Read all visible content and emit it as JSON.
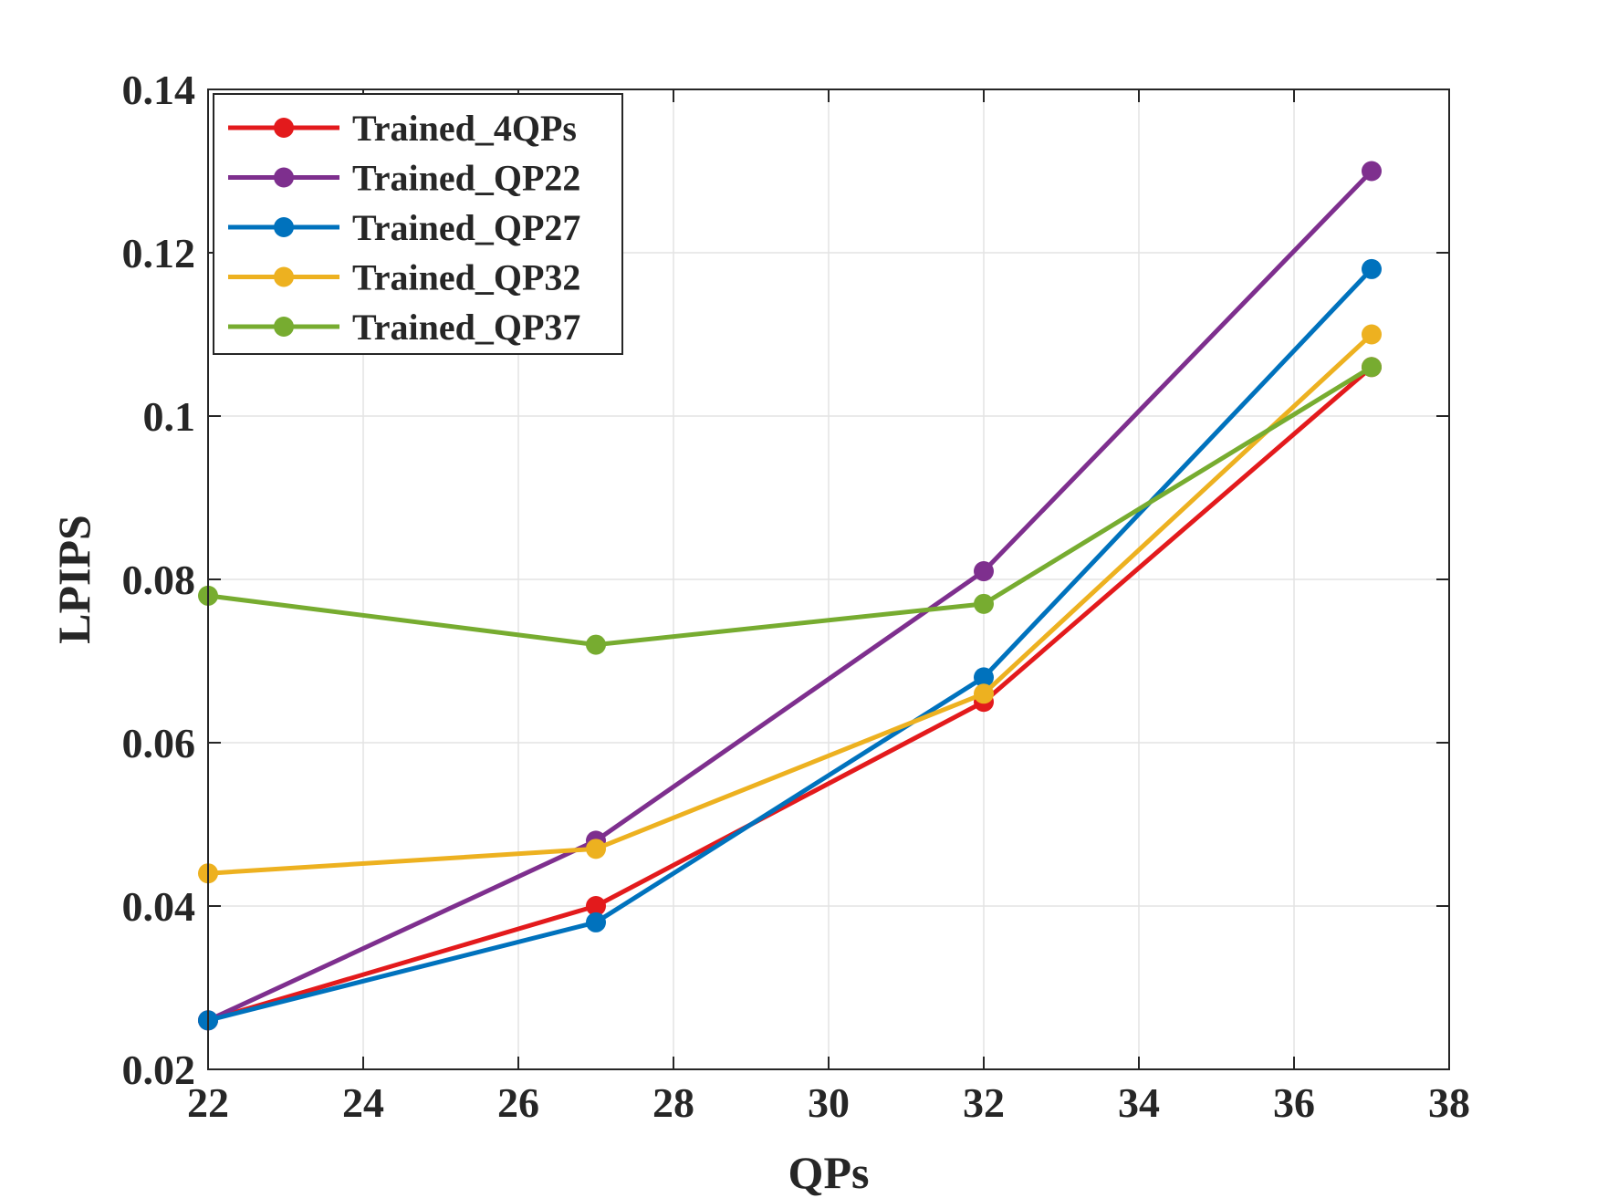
{
  "chart_data": {
    "type": "line",
    "title": "",
    "xlabel": "QPs",
    "ylabel": "LPIPS",
    "xlim": [
      22,
      38
    ],
    "ylim": [
      0.02,
      0.14
    ],
    "xticks": [
      22,
      24,
      26,
      28,
      30,
      32,
      34,
      36,
      38
    ],
    "yticks": [
      0.02,
      0.04,
      0.06,
      0.08,
      0.1,
      0.12,
      0.14
    ],
    "xtick_labels": [
      "22",
      "24",
      "26",
      "28",
      "30",
      "32",
      "34",
      "36",
      "38"
    ],
    "ytick_labels": [
      "0.02",
      "0.04",
      "0.06",
      "0.08",
      "0.1",
      "0.12",
      "0.14"
    ],
    "grid": true,
    "legend_position": "top-left",
    "x": [
      22,
      27,
      32,
      37
    ],
    "series": [
      {
        "name": "Trained_4QPs",
        "color": "#e31a1c",
        "values": [
          0.026,
          0.04,
          0.065,
          0.106
        ]
      },
      {
        "name": "Trained_QP22",
        "color": "#7e2f8e",
        "values": [
          0.026,
          0.048,
          0.081,
          0.13
        ]
      },
      {
        "name": "Trained_QP27",
        "color": "#0072bd",
        "values": [
          0.026,
          0.038,
          0.068,
          0.118
        ]
      },
      {
        "name": "Trained_QP32",
        "color": "#edb120",
        "values": [
          0.044,
          0.047,
          0.066,
          0.11
        ]
      },
      {
        "name": "Trained_QP37",
        "color": "#77ac30",
        "values": [
          0.078,
          0.072,
          0.077,
          0.106
        ]
      }
    ]
  }
}
